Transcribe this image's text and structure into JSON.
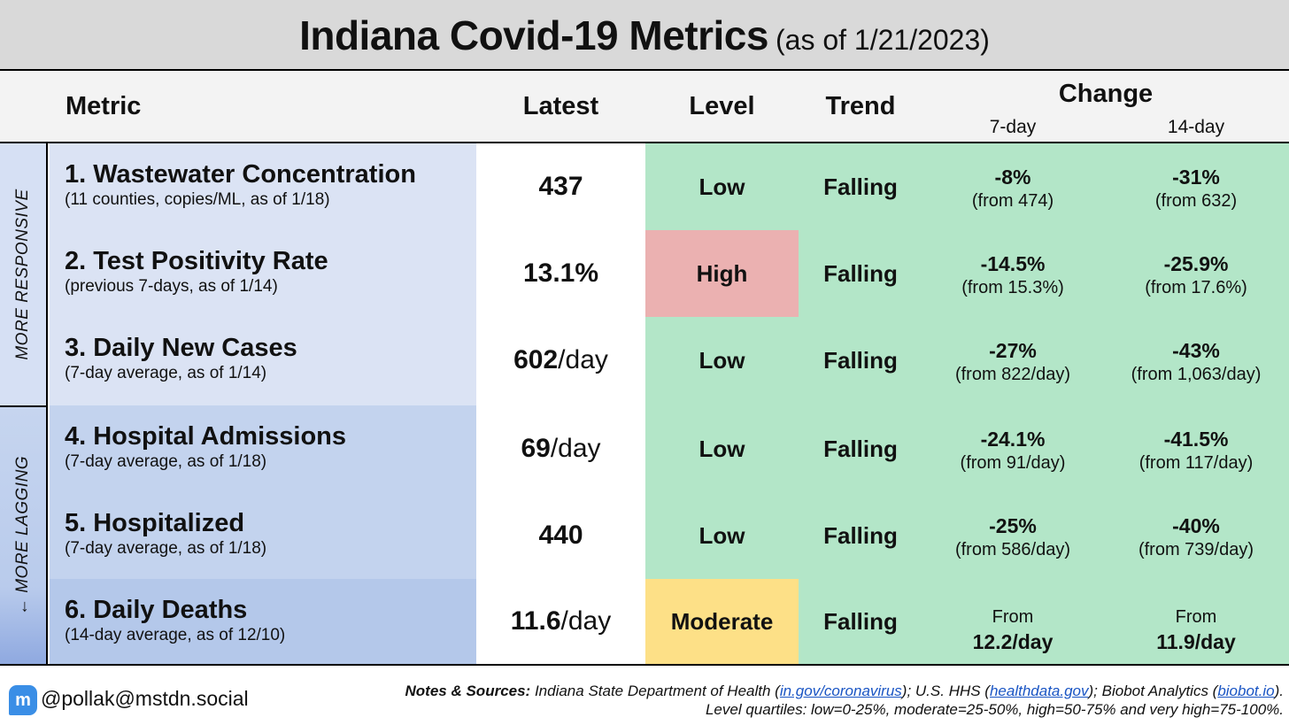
{
  "title": {
    "main": "Indiana Covid-19 Metrics",
    "sub": "(as of 1/21/2023)"
  },
  "header": {
    "metric": "Metric",
    "latest": "Latest",
    "level": "Level",
    "trend": "Trend",
    "change": "Change",
    "change_7": "7-day",
    "change_14": "14-day"
  },
  "groups": {
    "top": "MORE RESPONSIVE",
    "bottom": "← MORE LAGGING"
  },
  "rows": [
    {
      "title": "1. Wastewater Concentration",
      "sub": "(11 counties, copies/ML, as of 1/18)",
      "latest_num": "437",
      "latest_unit": "",
      "level": "Low",
      "trend": "Falling",
      "c7": "-8%",
      "c7_from": "(from 474)",
      "c14": "-31%",
      "c14_from": "(from 632)"
    },
    {
      "title": "2. Test Positivity Rate",
      "sub": "(previous 7-days, as of 1/14)",
      "latest_num": "13.1%",
      "latest_unit": "",
      "level": "High",
      "trend": "Falling",
      "c7": "-14.5%",
      "c7_from": "(from 15.3%)",
      "c14": "-25.9%",
      "c14_from": "(from 17.6%)"
    },
    {
      "title": "3. Daily New Cases",
      "sub": "(7-day average, as of 1/14)",
      "latest_num": "602",
      "latest_unit": "/day",
      "level": "Low",
      "trend": "Falling",
      "c7": "-27%",
      "c7_from": "(from 822/day)",
      "c14": "-43%",
      "c14_from": "(from 1,063/day)"
    },
    {
      "title": "4. Hospital Admissions",
      "sub": "(7-day average, as of 1/18)",
      "latest_num": "69",
      "latest_unit": "/day",
      "level": "Low",
      "trend": "Falling",
      "c7": "-24.1%",
      "c7_from": "(from 91/day)",
      "c14": "-41.5%",
      "c14_from": "(from 117/day)"
    },
    {
      "title": "5. Hospitalized",
      "sub": "(7-day average, as of 1/18)",
      "latest_num": "440",
      "latest_unit": "",
      "level": "Low",
      "trend": "Falling",
      "c7": "-25%",
      "c7_from": "(from 586/day)",
      "c14": "-40%",
      "c14_from": "(from 739/day)"
    },
    {
      "title": "6. Daily Deaths",
      "sub": "(14-day average, as of 12/10)",
      "latest_num": "11.6",
      "latest_unit": "/day",
      "level": "Moderate",
      "trend": "Falling",
      "c7_label": "From",
      "c7_val": "12.2/day",
      "c14_label": "From",
      "c14_val": "11.9/day"
    }
  ],
  "footer": {
    "handle": "@pollak@mstdn.social",
    "notes_label": "Notes & Sources:",
    "notes_1a": " Indiana State Department of Health (",
    "link_1": "in.gov/coronavirus",
    "notes_1b": "); U.S. HHS (",
    "link_2": "healthdata.gov",
    "notes_1c": ");  Biobot Analytics (",
    "link_3": "biobot.io",
    "notes_1d": ").",
    "notes_2": "Level quartiles: low=0-25%, moderate=25-50%, high=50-75% and very high=75-100%."
  },
  "colors": {
    "green": "#b3e6c8",
    "red": "#ebb1b1",
    "yellow": "#fde087",
    "mastodon": "#3a8ee6"
  },
  "icons": {
    "mastodon": "mastodon-icon"
  }
}
